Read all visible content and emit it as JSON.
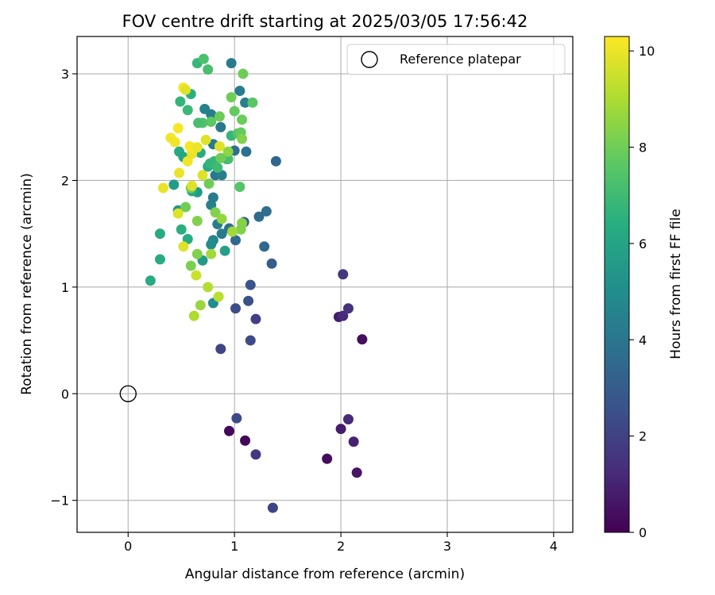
{
  "chart_data": {
    "type": "scatter",
    "title": "FOV centre drift starting at 2025/03/05 17:56:42",
    "xlabel": "Angular distance from reference (arcmin)",
    "ylabel": "Rotation from reference (arcmin)",
    "xlim": [
      -0.48,
      4.18
    ],
    "ylim": [
      -1.3,
      3.35
    ],
    "xticks": [
      "0",
      "1",
      "2",
      "3",
      "4"
    ],
    "yticks": [
      "−1",
      "0",
      "1",
      "2",
      "3"
    ],
    "grid": true,
    "legend": {
      "placement": "top-right",
      "entries": [
        "Reference platepar"
      ]
    },
    "reference_point": {
      "x": 0,
      "y": 0,
      "label": "Reference platepar"
    },
    "colorbar": {
      "label": "Hours from first FF file",
      "range": [
        0,
        10.3
      ],
      "ticks": [
        "0",
        "2",
        "4",
        "6",
        "8",
        "10"
      ],
      "colormap": "viridis"
    },
    "points": [
      {
        "x": 0.95,
        "y": -0.35,
        "c": 0.2
      },
      {
        "x": 1.1,
        "y": -0.44,
        "c": 0.2
      },
      {
        "x": 1.87,
        "y": -0.61,
        "c": 0.3
      },
      {
        "x": 2.15,
        "y": -0.74,
        "c": 0.6
      },
      {
        "x": 2.0,
        "y": -0.33,
        "c": 0.8
      },
      {
        "x": 2.12,
        "y": -0.45,
        "c": 1.0
      },
      {
        "x": 2.07,
        "y": -0.24,
        "c": 1.2
      },
      {
        "x": 1.2,
        "y": -0.57,
        "c": 1.6
      },
      {
        "x": 1.36,
        "y": -1.07,
        "c": 2.1
      },
      {
        "x": 1.02,
        "y": -0.23,
        "c": 2.3
      },
      {
        "x": 2.2,
        "y": 0.51,
        "c": 0.4
      },
      {
        "x": 1.98,
        "y": 0.72,
        "c": 0.8
      },
      {
        "x": 2.02,
        "y": 0.73,
        "c": 1.2
      },
      {
        "x": 2.07,
        "y": 0.8,
        "c": 1.5
      },
      {
        "x": 2.02,
        "y": 1.12,
        "c": 1.6
      },
      {
        "x": 1.2,
        "y": 0.7,
        "c": 1.9
      },
      {
        "x": 0.87,
        "y": 0.42,
        "c": 2.1
      },
      {
        "x": 1.15,
        "y": 0.5,
        "c": 2.3
      },
      {
        "x": 1.01,
        "y": 0.8,
        "c": 2.4
      },
      {
        "x": 1.13,
        "y": 0.87,
        "c": 2.5
      },
      {
        "x": 1.15,
        "y": 1.02,
        "c": 2.7
      },
      {
        "x": 1.35,
        "y": 1.22,
        "c": 3.0
      },
      {
        "x": 1.28,
        "y": 1.38,
        "c": 3.5
      },
      {
        "x": 1.23,
        "y": 1.66,
        "c": 3.6
      },
      {
        "x": 1.3,
        "y": 1.71,
        "c": 3.7
      },
      {
        "x": 1.39,
        "y": 2.18,
        "c": 3.4
      },
      {
        "x": 1.09,
        "y": 1.61,
        "c": 3.2
      },
      {
        "x": 1.01,
        "y": 1.44,
        "c": 3.5
      },
      {
        "x": 0.95,
        "y": 1.55,
        "c": 3.8
      },
      {
        "x": 0.88,
        "y": 1.5,
        "c": 4.2
      },
      {
        "x": 0.8,
        "y": 1.44,
        "c": 4.6
      },
      {
        "x": 0.84,
        "y": 1.59,
        "c": 4.4
      },
      {
        "x": 0.78,
        "y": 1.4,
        "c": 5.0
      },
      {
        "x": 0.78,
        "y": 1.77,
        "c": 4.5
      },
      {
        "x": 0.8,
        "y": 1.84,
        "c": 4.2
      },
      {
        "x": 0.82,
        "y": 2.05,
        "c": 4.0
      },
      {
        "x": 0.88,
        "y": 2.05,
        "c": 4.4
      },
      {
        "x": 0.93,
        "y": 2.2,
        "c": 4.0
      },
      {
        "x": 1.0,
        "y": 2.28,
        "c": 3.8
      },
      {
        "x": 1.11,
        "y": 2.27,
        "c": 3.8
      },
      {
        "x": 0.87,
        "y": 2.5,
        "c": 4.1
      },
      {
        "x": 0.78,
        "y": 2.62,
        "c": 4.3
      },
      {
        "x": 0.72,
        "y": 2.67,
        "c": 4.5
      },
      {
        "x": 0.8,
        "y": 2.34,
        "c": 4.2
      },
      {
        "x": 1.05,
        "y": 2.84,
        "c": 4.3
      },
      {
        "x": 1.1,
        "y": 2.73,
        "c": 4.4
      },
      {
        "x": 0.97,
        "y": 3.1,
        "c": 4.3
      },
      {
        "x": 0.8,
        "y": 0.85,
        "c": 5.0
      },
      {
        "x": 0.91,
        "y": 1.34,
        "c": 5.8
      },
      {
        "x": 0.7,
        "y": 1.25,
        "c": 5.5
      },
      {
        "x": 0.65,
        "y": 1.89,
        "c": 5.5
      },
      {
        "x": 0.6,
        "y": 1.9,
        "c": 6.2
      },
      {
        "x": 0.43,
        "y": 1.96,
        "c": 5.6
      },
      {
        "x": 0.47,
        "y": 1.72,
        "c": 5.4
      },
      {
        "x": 0.5,
        "y": 1.54,
        "c": 6.5
      },
      {
        "x": 0.3,
        "y": 1.5,
        "c": 6.3
      },
      {
        "x": 0.56,
        "y": 1.45,
        "c": 6.3
      },
      {
        "x": 0.3,
        "y": 1.26,
        "c": 6.3
      },
      {
        "x": 0.21,
        "y": 1.06,
        "c": 6.3
      },
      {
        "x": 0.48,
        "y": 2.27,
        "c": 6.2
      },
      {
        "x": 0.52,
        "y": 2.22,
        "c": 6.0
      },
      {
        "x": 0.68,
        "y": 2.26,
        "c": 6.3
      },
      {
        "x": 0.75,
        "y": 2.13,
        "c": 6.3
      },
      {
        "x": 0.77,
        "y": 2.16,
        "c": 6.7
      },
      {
        "x": 0.81,
        "y": 2.18,
        "c": 6.8
      },
      {
        "x": 0.84,
        "y": 2.12,
        "c": 7.0
      },
      {
        "x": 0.94,
        "y": 2.2,
        "c": 7.2
      },
      {
        "x": 0.97,
        "y": 2.42,
        "c": 6.8
      },
      {
        "x": 1.03,
        "y": 2.44,
        "c": 7.5
      },
      {
        "x": 0.49,
        "y": 2.74,
        "c": 6.7
      },
      {
        "x": 0.56,
        "y": 2.66,
        "c": 6.9
      },
      {
        "x": 0.59,
        "y": 2.81,
        "c": 6.5
      },
      {
        "x": 0.65,
        "y": 3.1,
        "c": 6.8
      },
      {
        "x": 0.71,
        "y": 3.14,
        "c": 7.3
      },
      {
        "x": 0.75,
        "y": 3.04,
        "c": 7.2
      },
      {
        "x": 1.08,
        "y": 3.0,
        "c": 8.0
      },
      {
        "x": 0.97,
        "y": 2.78,
        "c": 8.0
      },
      {
        "x": 1.17,
        "y": 2.73,
        "c": 7.6
      },
      {
        "x": 1.0,
        "y": 2.65,
        "c": 7.8
      },
      {
        "x": 1.07,
        "y": 2.57,
        "c": 7.9
      },
      {
        "x": 0.86,
        "y": 2.6,
        "c": 7.9
      },
      {
        "x": 0.78,
        "y": 2.55,
        "c": 7.7
      },
      {
        "x": 0.7,
        "y": 2.54,
        "c": 7.4
      },
      {
        "x": 0.66,
        "y": 2.54,
        "c": 7.2
      },
      {
        "x": 1.06,
        "y": 2.45,
        "c": 7.8
      },
      {
        "x": 1.07,
        "y": 2.39,
        "c": 8.3
      },
      {
        "x": 0.94,
        "y": 2.27,
        "c": 8.5
      },
      {
        "x": 0.87,
        "y": 2.21,
        "c": 8.0
      },
      {
        "x": 0.76,
        "y": 1.97,
        "c": 8.0
      },
      {
        "x": 1.05,
        "y": 1.94,
        "c": 7.5
      },
      {
        "x": 0.59,
        "y": 1.93,
        "c": 8.0
      },
      {
        "x": 0.54,
        "y": 1.75,
        "c": 8.0
      },
      {
        "x": 0.82,
        "y": 1.7,
        "c": 8.3
      },
      {
        "x": 0.88,
        "y": 1.64,
        "c": 8.6
      },
      {
        "x": 0.65,
        "y": 1.62,
        "c": 8.3
      },
      {
        "x": 1.07,
        "y": 1.6,
        "c": 8.4
      },
      {
        "x": 1.06,
        "y": 1.54,
        "c": 8.3
      },
      {
        "x": 0.98,
        "y": 1.52,
        "c": 8.8
      },
      {
        "x": 0.59,
        "y": 1.2,
        "c": 8.2
      },
      {
        "x": 0.65,
        "y": 1.31,
        "c": 8.3
      },
      {
        "x": 0.78,
        "y": 1.31,
        "c": 8.8
      },
      {
        "x": 0.75,
        "y": 1.0,
        "c": 9.1
      },
      {
        "x": 0.85,
        "y": 0.91,
        "c": 9.2
      },
      {
        "x": 0.68,
        "y": 0.83,
        "c": 8.7
      },
      {
        "x": 0.62,
        "y": 0.73,
        "c": 9.0
      },
      {
        "x": 0.64,
        "y": 1.11,
        "c": 9.5
      },
      {
        "x": 0.52,
        "y": 1.38,
        "c": 9.8
      },
      {
        "x": 0.47,
        "y": 1.69,
        "c": 9.8
      },
      {
        "x": 0.33,
        "y": 1.93,
        "c": 10.0
      },
      {
        "x": 0.6,
        "y": 1.95,
        "c": 9.8
      },
      {
        "x": 0.48,
        "y": 2.07,
        "c": 10.0
      },
      {
        "x": 0.56,
        "y": 2.18,
        "c": 10.1
      },
      {
        "x": 0.6,
        "y": 2.25,
        "c": 10.0
      },
      {
        "x": 0.62,
        "y": 2.3,
        "c": 10.2
      },
      {
        "x": 0.58,
        "y": 2.32,
        "c": 10.2
      },
      {
        "x": 0.4,
        "y": 2.4,
        "c": 10.1
      },
      {
        "x": 0.44,
        "y": 2.36,
        "c": 10.1
      },
      {
        "x": 0.47,
        "y": 2.49,
        "c": 10.2
      },
      {
        "x": 0.65,
        "y": 2.31,
        "c": 10.0
      },
      {
        "x": 0.73,
        "y": 2.38,
        "c": 9.8
      },
      {
        "x": 0.86,
        "y": 2.32,
        "c": 9.8
      },
      {
        "x": 0.7,
        "y": 2.05,
        "c": 9.8
      },
      {
        "x": 0.52,
        "y": 2.87,
        "c": 10.2
      },
      {
        "x": 0.54,
        "y": 2.85,
        "c": 9.8
      }
    ]
  }
}
